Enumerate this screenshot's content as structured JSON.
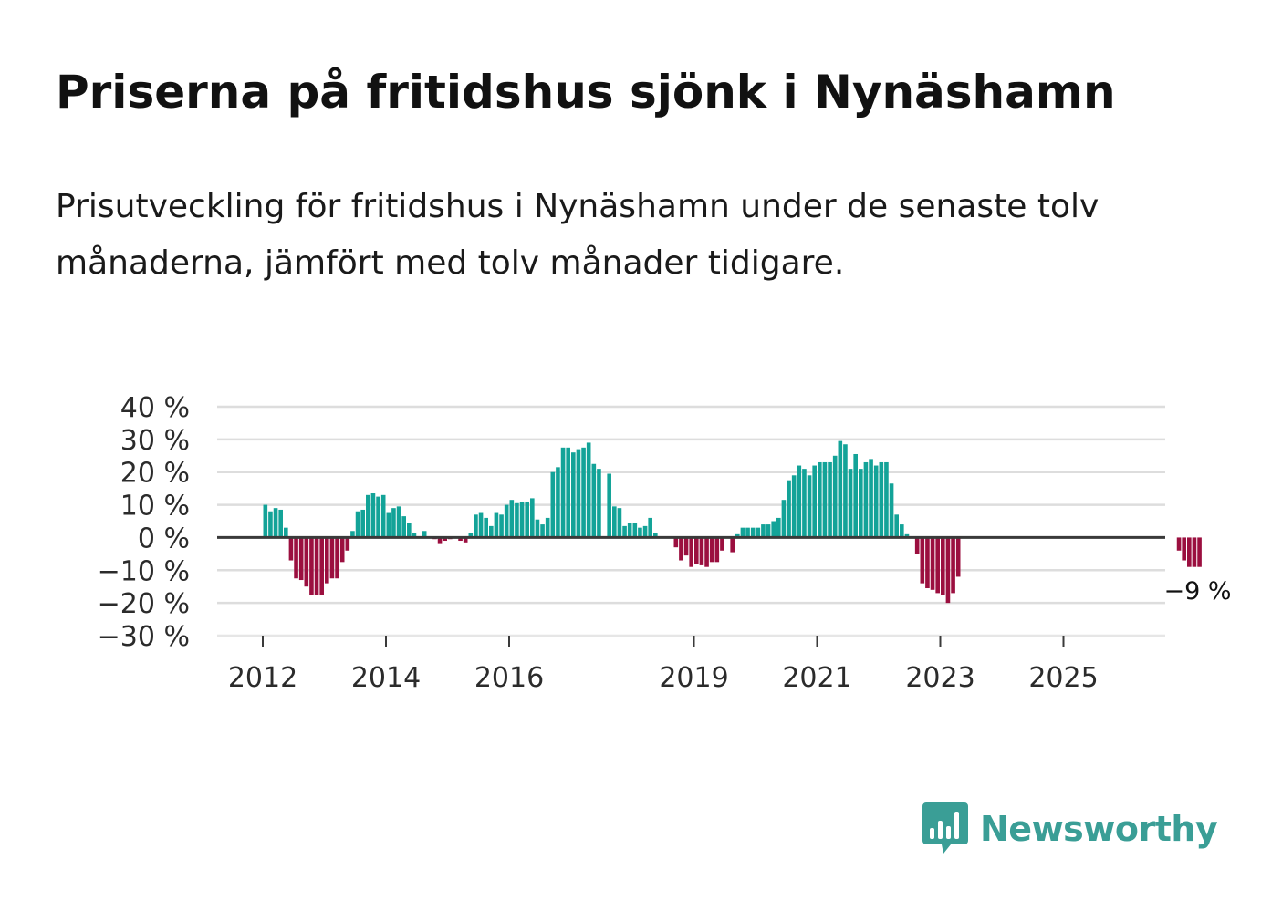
{
  "title": "Priserna på fritidshus sjönk i Nynäshamn",
  "subtitle": "Prisutveckling för fritidshus i Nynäshamn under de senaste tolv månaderna, jämfört med tolv månader tidigare.",
  "brand": {
    "name": "Newsworthy",
    "icon": "newsworthy-logo-icon"
  },
  "colors": {
    "positive": "#13a398",
    "negative": "#9b0f3f",
    "brand": "#3a9e96"
  },
  "chart_data": {
    "type": "bar",
    "title": "Priserna på fritidshus sjönk i Nynäshamn",
    "ylabel": "",
    "xlabel": "",
    "ylim": [
      -30,
      40
    ],
    "yticks": [
      "40 %",
      "30 %",
      "20 %",
      "10 %",
      "0 %",
      "−10 %",
      "−20 %",
      "−30 %"
    ],
    "ytick_values": [
      40,
      30,
      20,
      10,
      0,
      -10,
      -20,
      -30
    ],
    "xticks": [
      "2012",
      "2014",
      "2016",
      "2019",
      "2021",
      "2023",
      "2025"
    ],
    "xtick_positions": [
      2012.0,
      2014.0,
      2016.0,
      2019.0,
      2021.0,
      2023.0,
      2025.0
    ],
    "x_start": 2012.0,
    "x_step_months": 1,
    "annotation": {
      "text": "−9 %",
      "value": -9
    },
    "values": [
      10,
      8,
      9,
      8.5,
      3,
      -7,
      -12.5,
      -13,
      -15,
      -17.5,
      -17.5,
      -17.5,
      -14,
      -12.5,
      -12.5,
      -7.5,
      -4,
      2,
      8,
      8.5,
      13,
      13.5,
      12.5,
      13,
      7.5,
      9,
      9.5,
      6.5,
      4.5,
      1.5,
      0,
      2,
      0,
      -0.5,
      -2,
      -1,
      -0.5,
      0,
      -1,
      -1.5,
      1.5,
      7,
      7.5,
      6,
      3.5,
      7.5,
      7,
      10,
      11.5,
      10.5,
      11,
      11,
      12,
      5.5,
      4,
      6,
      20,
      21.5,
      27.5,
      27.5,
      26,
      27,
      27.5,
      29,
      22.5,
      21,
      0,
      19.5,
      9.5,
      9,
      3.5,
      4.5,
      4.5,
      3,
      3.5,
      6,
      1.5,
      0,
      0,
      0,
      -3,
      -7,
      -5.5,
      -9,
      -8,
      -8.5,
      -9,
      -7.5,
      -7.5,
      -4,
      0,
      -4.5,
      1,
      3,
      3,
      3,
      3,
      4,
      4,
      5,
      6,
      11.5,
      17.5,
      19,
      22,
      21,
      19,
      22,
      23,
      23,
      23,
      25,
      29.5,
      28.5,
      21,
      25.5,
      21,
      23,
      24,
      22,
      23,
      23,
      16.5,
      7,
      4,
      1,
      0,
      -5,
      -14,
      -15.5,
      -16,
      -17,
      -17.5,
      -20,
      -17,
      -12,
      0,
      0,
      0,
      0,
      0,
      0,
      0,
      0,
      0,
      0,
      0,
      0,
      0,
      0,
      0,
      0,
      0,
      0,
      0,
      0,
      0,
      0,
      0,
      0,
      0,
      0,
      0,
      0,
      0,
      0,
      0,
      0,
      0,
      0,
      0,
      0,
      0,
      0,
      0,
      0,
      0,
      0,
      -4,
      -7,
      -9,
      -9,
      -9
    ]
  }
}
